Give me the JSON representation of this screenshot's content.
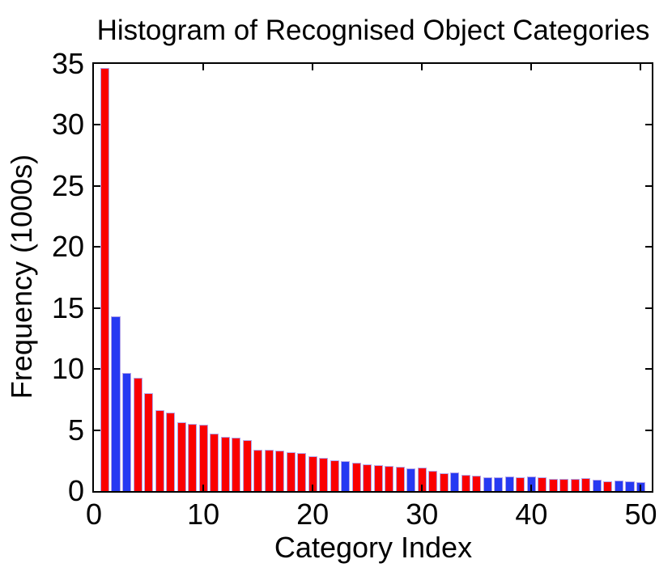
{
  "chart_data": {
    "type": "bar",
    "title": "Histogram of Recognised Object Categories",
    "xlabel": "Category Index",
    "ylabel": "Frequency (1000s)",
    "xlim": [
      0,
      51
    ],
    "ylim": [
      0,
      35
    ],
    "xticks": [
      0,
      10,
      20,
      30,
      40,
      50
    ],
    "yticks": [
      0,
      5,
      10,
      15,
      20,
      25,
      30,
      35
    ],
    "grid": false,
    "legend": null,
    "bar_width_units": 0.82,
    "categories": [
      1,
      2,
      3,
      4,
      5,
      6,
      7,
      8,
      9,
      10,
      11,
      12,
      13,
      14,
      15,
      16,
      17,
      18,
      19,
      20,
      21,
      22,
      23,
      24,
      25,
      26,
      27,
      28,
      29,
      30,
      31,
      32,
      33,
      34,
      35,
      36,
      37,
      38,
      39,
      40,
      41,
      42,
      43,
      44,
      45,
      46,
      47,
      48,
      49,
      50
    ],
    "values": [
      34.7,
      14.3,
      9.65,
      9.3,
      8.0,
      6.6,
      6.45,
      5.65,
      5.5,
      5.45,
      4.7,
      4.45,
      4.35,
      4.2,
      3.4,
      3.35,
      3.3,
      3.2,
      3.1,
      2.85,
      2.7,
      2.5,
      2.45,
      2.3,
      2.2,
      2.15,
      2.05,
      2.0,
      1.85,
      1.9,
      1.65,
      1.45,
      1.5,
      1.3,
      1.25,
      1.15,
      1.15,
      1.2,
      1.1,
      1.2,
      1.15,
      1.0,
      1.0,
      1.0,
      1.05,
      0.95,
      0.8,
      0.85,
      0.8,
      0.7
    ],
    "bar_colors": [
      "red",
      "blue",
      "blue",
      "red",
      "red",
      "red",
      "red",
      "red",
      "red",
      "red",
      "red",
      "red",
      "red",
      "red",
      "red",
      "red",
      "red",
      "red",
      "red",
      "red",
      "red",
      "red",
      "blue",
      "red",
      "red",
      "red",
      "red",
      "red",
      "blue",
      "red",
      "red",
      "red",
      "blue",
      "red",
      "red",
      "blue",
      "blue",
      "blue",
      "red",
      "blue",
      "red",
      "red",
      "red",
      "red",
      "red",
      "blue",
      "red",
      "blue",
      "blue",
      "blue"
    ],
    "colors": {
      "red": "#fa0000",
      "blue": "#2639f2",
      "bar_edge": "#b2a4ea",
      "axis": "#000000",
      "background": "#ffffff"
    }
  }
}
